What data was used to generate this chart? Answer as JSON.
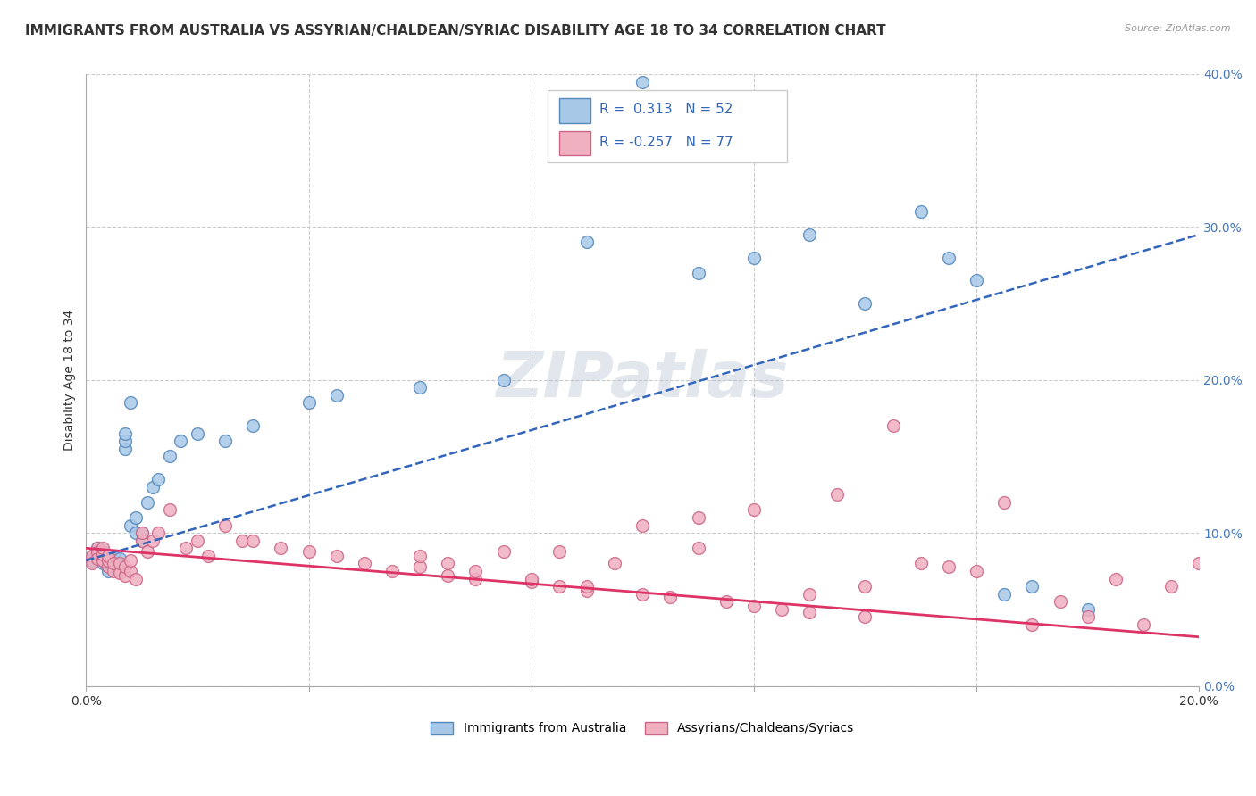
{
  "title": "IMMIGRANTS FROM AUSTRALIA VS ASSYRIAN/CHALDEAN/SYRIAC DISABILITY AGE 18 TO 34 CORRELATION CHART",
  "source": "Source: ZipAtlas.com",
  "xlabel_blue": "Immigrants from Australia",
  "xlabel_pink": "Assyrians/Chaldeans/Syriacs",
  "ylabel": "Disability Age 18 to 34",
  "watermark": "ZIPatlas",
  "legend_r_blue_val": "0.313",
  "legend_n_blue": "N = 52",
  "legend_r_pink_val": "-0.257",
  "legend_n_pink": "N = 77",
  "xlim": [
    0.0,
    0.2
  ],
  "ylim": [
    0.0,
    0.4
  ],
  "xtick_labels_show": [
    "0.0%",
    "20.0%"
  ],
  "xtick_labels_pos": [
    0.0,
    0.2
  ],
  "yticks": [
    0.0,
    0.1,
    0.2,
    0.3,
    0.4
  ],
  "ytick_labels": [
    "0.0%",
    "10.0%",
    "20.0%",
    "30.0%",
    "40.0%"
  ],
  "grid_xticks": [
    0.0,
    0.04,
    0.08,
    0.12,
    0.16,
    0.2
  ],
  "blue_color": "#a8c8e8",
  "blue_edge": "#5588bb",
  "pink_color": "#f0b0c0",
  "pink_edge": "#cc6688",
  "blue_line_color": "#3366bb",
  "pink_line_color": "#dd3366",
  "blue_points_x": [
    0.001,
    0.001,
    0.002,
    0.002,
    0.002,
    0.003,
    0.003,
    0.003,
    0.003,
    0.004,
    0.004,
    0.004,
    0.005,
    0.005,
    0.005,
    0.005,
    0.006,
    0.006,
    0.006,
    0.007,
    0.007,
    0.007,
    0.008,
    0.008,
    0.009,
    0.009,
    0.01,
    0.01,
    0.011,
    0.012,
    0.013,
    0.015,
    0.017,
    0.02,
    0.025,
    0.03,
    0.04,
    0.045,
    0.06,
    0.075,
    0.09,
    0.1,
    0.11,
    0.12,
    0.13,
    0.14,
    0.15,
    0.155,
    0.16,
    0.165,
    0.17,
    0.18
  ],
  "blue_points_y": [
    0.085,
    0.082,
    0.09,
    0.087,
    0.083,
    0.08,
    0.085,
    0.082,
    0.088,
    0.075,
    0.08,
    0.083,
    0.078,
    0.082,
    0.085,
    0.08,
    0.076,
    0.08,
    0.083,
    0.155,
    0.16,
    0.165,
    0.185,
    0.105,
    0.1,
    0.11,
    0.095,
    0.1,
    0.12,
    0.13,
    0.135,
    0.15,
    0.16,
    0.165,
    0.16,
    0.17,
    0.185,
    0.19,
    0.195,
    0.2,
    0.29,
    0.395,
    0.27,
    0.28,
    0.295,
    0.25,
    0.31,
    0.28,
    0.265,
    0.06,
    0.065,
    0.05
  ],
  "pink_points_x": [
    0.001,
    0.001,
    0.002,
    0.002,
    0.002,
    0.003,
    0.003,
    0.003,
    0.004,
    0.004,
    0.004,
    0.005,
    0.005,
    0.006,
    0.006,
    0.007,
    0.007,
    0.008,
    0.008,
    0.009,
    0.01,
    0.01,
    0.011,
    0.012,
    0.013,
    0.015,
    0.018,
    0.02,
    0.022,
    0.025,
    0.028,
    0.03,
    0.035,
    0.04,
    0.045,
    0.05,
    0.055,
    0.06,
    0.065,
    0.07,
    0.075,
    0.08,
    0.085,
    0.09,
    0.095,
    0.1,
    0.105,
    0.11,
    0.115,
    0.12,
    0.125,
    0.13,
    0.135,
    0.14,
    0.145,
    0.15,
    0.155,
    0.16,
    0.165,
    0.17,
    0.175,
    0.18,
    0.185,
    0.19,
    0.195,
    0.2,
    0.07,
    0.08,
    0.09,
    0.1,
    0.11,
    0.12,
    0.13,
    0.14,
    0.06,
    0.065,
    0.085
  ],
  "pink_points_y": [
    0.085,
    0.08,
    0.09,
    0.087,
    0.083,
    0.082,
    0.086,
    0.09,
    0.078,
    0.082,
    0.085,
    0.075,
    0.08,
    0.074,
    0.08,
    0.072,
    0.078,
    0.075,
    0.082,
    0.07,
    0.095,
    0.1,
    0.088,
    0.095,
    0.1,
    0.115,
    0.09,
    0.095,
    0.085,
    0.105,
    0.095,
    0.095,
    0.09,
    0.088,
    0.085,
    0.08,
    0.075,
    0.078,
    0.072,
    0.07,
    0.088,
    0.068,
    0.065,
    0.062,
    0.08,
    0.06,
    0.058,
    0.09,
    0.055,
    0.052,
    0.05,
    0.048,
    0.125,
    0.045,
    0.17,
    0.08,
    0.078,
    0.075,
    0.12,
    0.04,
    0.055,
    0.045,
    0.07,
    0.04,
    0.065,
    0.08,
    0.075,
    0.07,
    0.065,
    0.105,
    0.11,
    0.115,
    0.06,
    0.065,
    0.085,
    0.08,
    0.088
  ],
  "blue_trend_x": [
    0.0,
    0.2
  ],
  "blue_trend_y": [
    0.082,
    0.295
  ],
  "pink_trend_x": [
    0.0,
    0.2
  ],
  "pink_trend_y": [
    0.09,
    0.032
  ],
  "grid_color": "#cccccc",
  "background_color": "#ffffff",
  "title_fontsize": 11,
  "axis_fontsize": 10,
  "tick_fontsize": 10,
  "watermark_fontsize": 52,
  "watermark_color": "#aabbcc",
  "watermark_alpha": 0.35,
  "ytick_color": "#4477bb",
  "xtick_color": "#333333"
}
